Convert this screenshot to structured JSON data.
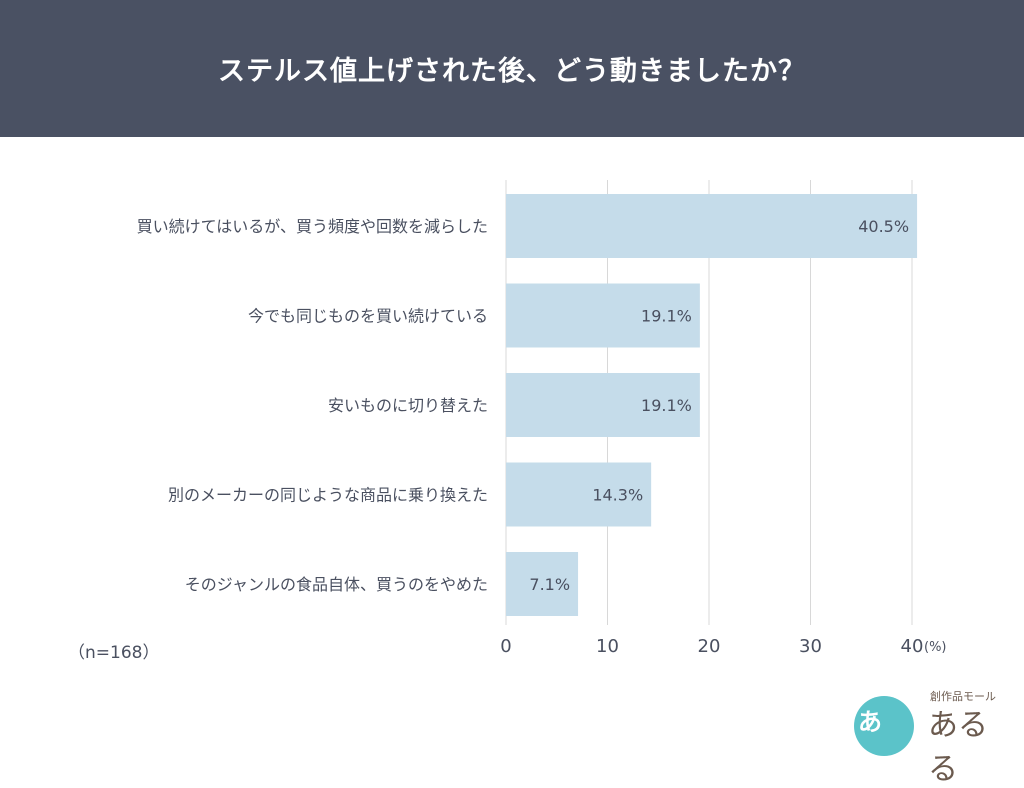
{
  "header": {
    "title": "ステルス値上げされた後、どう動きましたか？"
  },
  "note": "（n=168）",
  "logo": {
    "mark": "あ",
    "sub": "創作品モール",
    "main": "あるる"
  },
  "colors": {
    "header_bg": "#4a5163",
    "bar": "#c5dcea",
    "grid": "#d8d8d8",
    "text": "#4a5060"
  },
  "chart_data": {
    "type": "bar",
    "orientation": "horizontal",
    "categories": [
      "買い続けてはいるが、買う頻度や回数を減らした",
      "今でも同じものを買い続けている",
      "安いものに切り替えた",
      "別のメーカーの同じような商品に乗り換えた",
      "そのジャンルの食品自体、買うのをやめた"
    ],
    "values": [
      40.5,
      19.1,
      19.1,
      14.3,
      7.1
    ],
    "value_labels": [
      "40.5%",
      "19.1%",
      "19.1%",
      "14.3%",
      "7.1%"
    ],
    "xticks": [
      0,
      10,
      20,
      30,
      40
    ],
    "xtick_labels": [
      "0",
      "10",
      "20",
      "30",
      "40"
    ],
    "xunit": "(%)",
    "xlim": [
      0,
      40.5
    ],
    "grid": true
  }
}
